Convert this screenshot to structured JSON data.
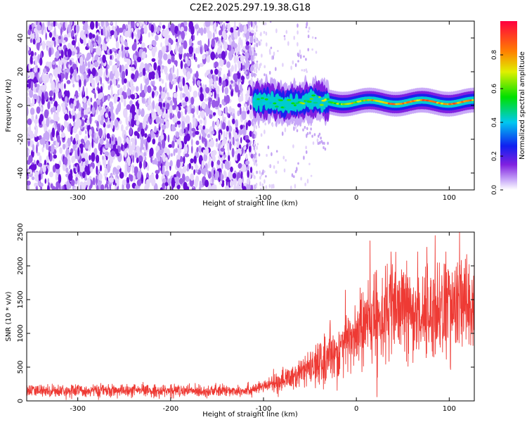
{
  "title": "C2E2.2025.297.19.38.G18",
  "chart_data": [
    {
      "type": "heatmap",
      "xlabel": "Height of straight line (km)",
      "ylabel": "Frequency (Hz)",
      "xlim": [
        -355,
        127
      ],
      "ylim": [
        -50,
        50
      ],
      "xticks": [
        -300,
        -200,
        -100,
        0,
        100
      ],
      "yticks": [
        -40,
        -20,
        0,
        20,
        40
      ],
      "colorbar": {
        "label": "Normalized spectral amplitude",
        "range": [
          0,
          1
        ],
        "ticks": [
          0.0,
          0.2,
          0.4,
          0.6,
          0.8
        ]
      },
      "ridge": {
        "x_start": -110,
        "frequency_hz": 2,
        "amplitude_start": 0.4,
        "amplitude_end": 0.8
      },
      "noise_region": {
        "x_from": -355,
        "x_to": -110,
        "amplitude": 0.15
      }
    },
    {
      "type": "line",
      "xlabel": "Height of straight line (km)",
      "ylabel": "SNR (10 * v/v)",
      "xlim": [
        -355,
        127
      ],
      "ylim": [
        0,
        2500
      ],
      "xticks": [
        -300,
        -200,
        -100,
        0,
        100
      ],
      "yticks": [
        0,
        500,
        1000,
        1500,
        2000,
        2500
      ],
      "color": "#ee3a34",
      "series": [
        {
          "name": "SNR",
          "x": [
            -355,
            -300,
            -250,
            -200,
            -150,
            -120,
            -105,
            -95,
            -80,
            -60,
            -40,
            -20,
            0,
            20,
            40,
            60,
            80,
            95,
            110,
            127
          ],
          "y": [
            150,
            150,
            150,
            150,
            145,
            160,
            190,
            230,
            300,
            400,
            550,
            750,
            1000,
            1250,
            1330,
            1330,
            1320,
            1380,
            1400,
            1450
          ]
        }
      ]
    }
  ]
}
